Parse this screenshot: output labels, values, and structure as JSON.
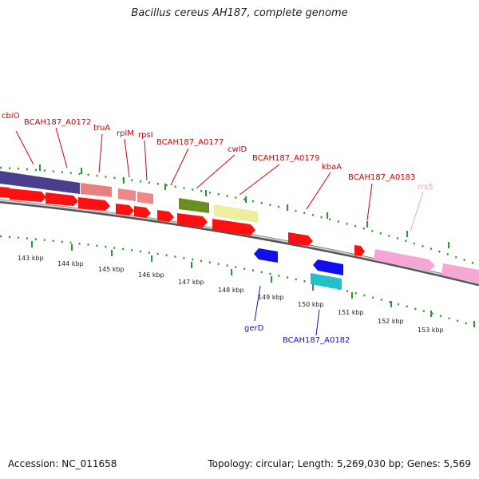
{
  "title": "Bacillus cereus AH187, complete genome",
  "accession": "Accession: NC_011658",
  "summary": "Topology: circular; Length: 5,269,030 bp; Genes: 5,569",
  "colors": {
    "backbone": "#8a8a8a",
    "forward_gene": "#ff1010",
    "reverse_gene": "#1010ee",
    "label_red": "#d20000",
    "label_blue": "#1010c0",
    "label_pink": "#f2a0c8",
    "tick": "#2a9a2a",
    "rRNA": "#f5a6d2"
  },
  "kbp_labels": [
    "143 kbp",
    "144 kbp",
    "145 kbp",
    "146 kbp",
    "147 kbp",
    "148 kbp",
    "149 kbp",
    "150 kbp",
    "151 kbp",
    "152 kbp",
    "153 kbp"
  ],
  "top_labels": [
    {
      "text": "cbiO",
      "cls": "lbl-red"
    },
    {
      "text": "BCAH187_A0172",
      "cls": "lbl-red"
    },
    {
      "text": "truA",
      "cls": "lbl-red"
    },
    {
      "text": "rplM",
      "cls": "lbl-red"
    },
    {
      "text": "rpsI",
      "cls": "lbl-red"
    },
    {
      "text": "BCAH187_A0177",
      "cls": "lbl-red"
    },
    {
      "text": "cwlD",
      "cls": "lbl-red"
    },
    {
      "text": "BCAH187_A0179",
      "cls": "lbl-red"
    },
    {
      "text": "kbaA",
      "cls": "lbl-red"
    },
    {
      "text": "BCAH187_A0183",
      "cls": "lbl-red"
    },
    {
      "text": "rrs5",
      "cls": "lbl-pink"
    }
  ],
  "bottom_labels": [
    {
      "text": "gerD",
      "cls": "lbl-blue"
    },
    {
      "text": "BCAH187_A0182",
      "cls": "lbl-blue"
    }
  ]
}
